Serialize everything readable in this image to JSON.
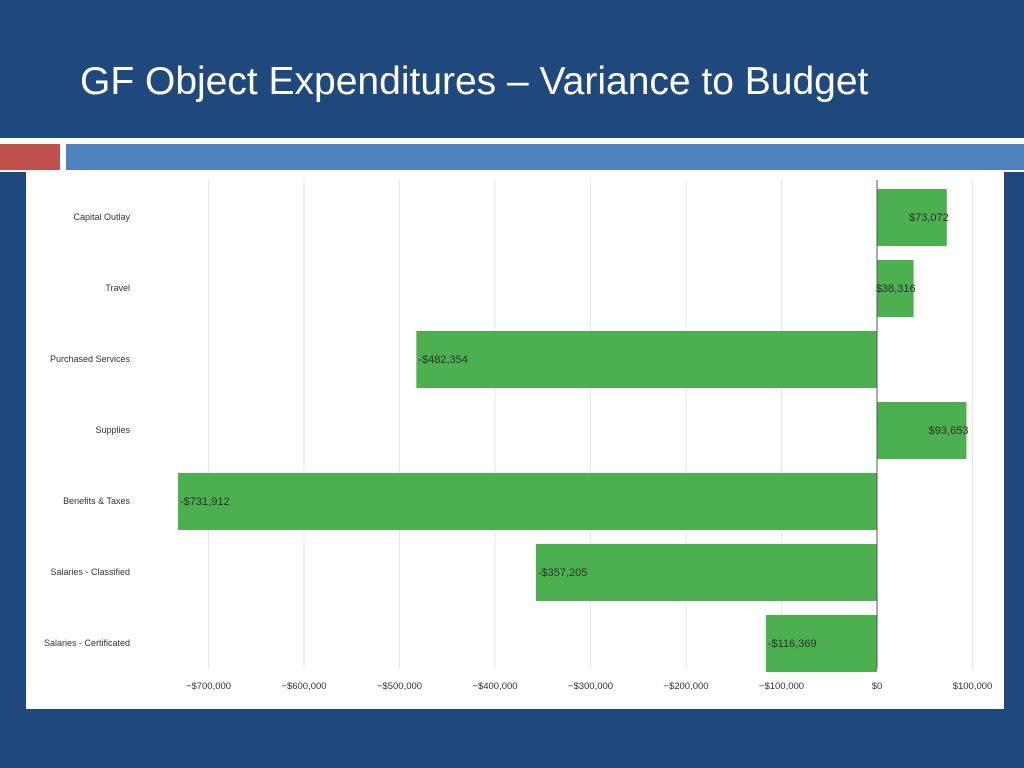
{
  "slide": {
    "title": "GF Object Expenditures – Variance to Budget"
  },
  "colors": {
    "background": "#1f497d",
    "accent_red": "#c0504d",
    "accent_blue": "#4f81bd",
    "bar": "#4caf50"
  },
  "chart_data": {
    "type": "bar",
    "orientation": "horizontal",
    "title": "",
    "xlabel": "",
    "ylabel": "",
    "categories": [
      "Capital Outlay",
      "Travel",
      "Purchased Services",
      "Supplies",
      "Benefits & Taxes",
      "Salaries - Classified",
      "Salaries - Certificated"
    ],
    "values": [
      73072,
      38316,
      -482354,
      93653,
      -731912,
      -357205,
      -116369
    ],
    "data_labels": [
      "$73,072",
      "$38,316",
      "-$482,354",
      "$93,653",
      "-$731,912",
      "-$357,205",
      "-$116,369"
    ],
    "xlim": [
      -730000,
      100000
    ],
    "ticks": [
      -700000,
      -600000,
      -500000,
      -400000,
      -300000,
      -200000,
      -100000,
      0,
      100000
    ],
    "tick_labels": [
      "−$700,000",
      "−$600,000",
      "−$500,000",
      "−$400,000",
      "−$300,000",
      "−$200,000",
      "−$100,000",
      "$0",
      "$100,000"
    ],
    "grid": true,
    "legend": "none"
  }
}
